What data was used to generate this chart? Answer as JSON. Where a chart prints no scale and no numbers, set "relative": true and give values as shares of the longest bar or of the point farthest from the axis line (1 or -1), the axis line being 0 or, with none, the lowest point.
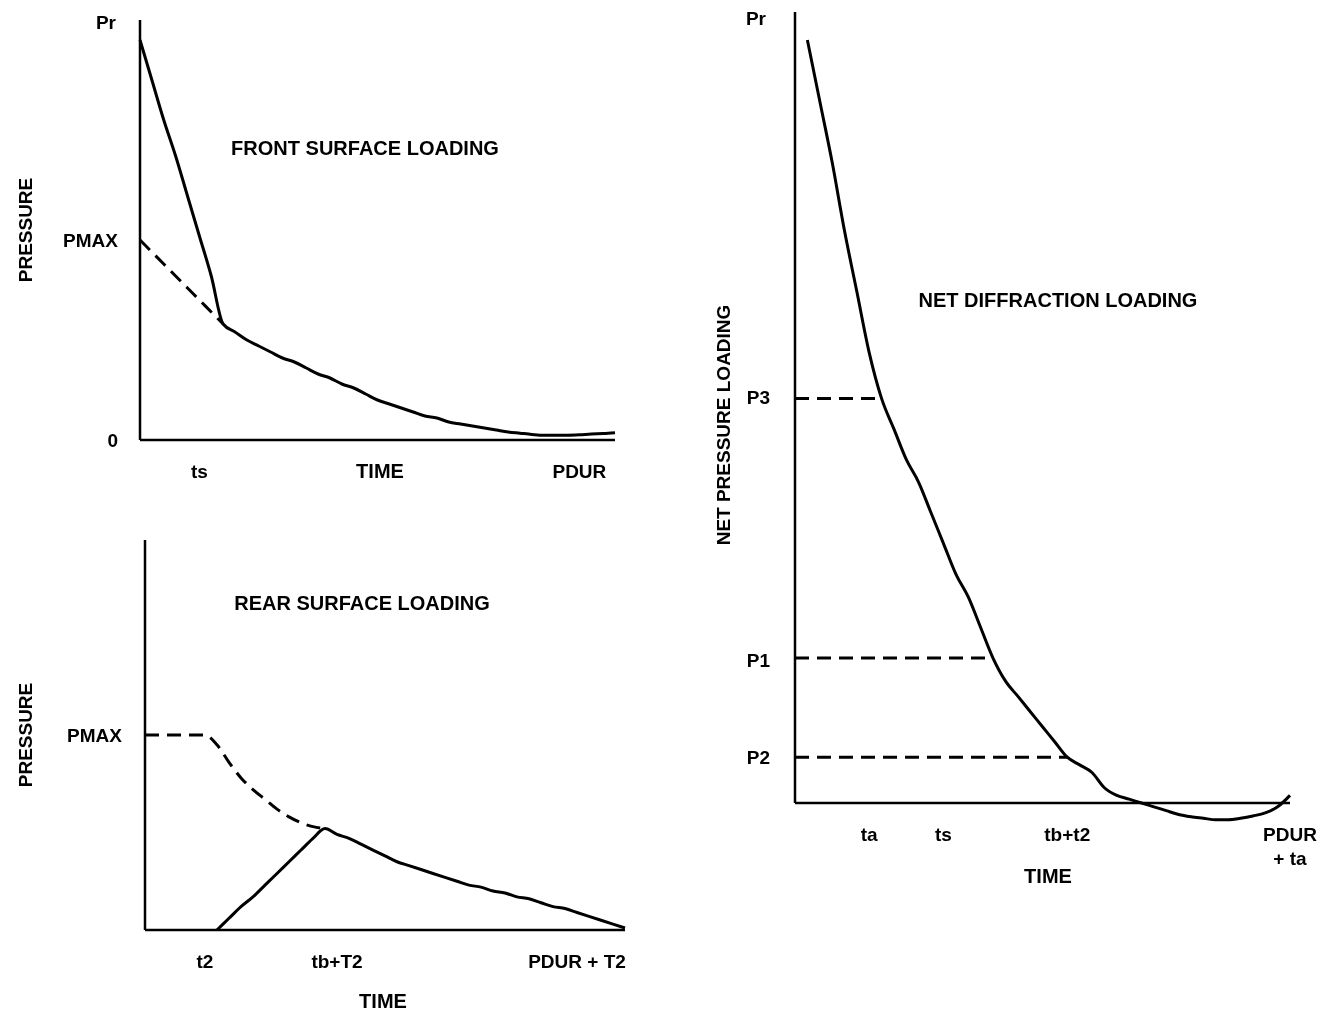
{
  "chart_data": [
    {
      "type": "line",
      "relative": true,
      "title": "FRONT SURFACE LOADING",
      "xlabel": "TIME",
      "ylabel": "PRESSURE",
      "categories": [
        null,
        null,
        null,
        null,
        null,
        "ts",
        null,
        null,
        null,
        null,
        null,
        null,
        null,
        null,
        null,
        null,
        null,
        null,
        null,
        null,
        null,
        null,
        null,
        null,
        null,
        null,
        null,
        null,
        null,
        null,
        null,
        null,
        null,
        null,
        null,
        null,
        null,
        "PDUR",
        null,
        null,
        null
      ],
      "annotations": [
        "Pr",
        "PMAX",
        "0"
      ],
      "series": [
        {
          "color": "#000000",
          "line_style": "solid",
          "values": [
            1,
            0.9,
            0.8,
            0.71,
            0.61,
            0.51,
            0.41,
            0.29,
            0.27,
            0.25,
            0.235,
            0.22,
            0.205,
            0.195,
            0.18,
            0.165,
            0.155,
            0.14,
            0.13,
            0.115,
            0.1,
            0.09,
            0.08,
            0.07,
            0.06,
            0.055,
            0.045,
            0.04,
            0.035,
            0.03,
            0.025,
            0.02,
            0.017,
            0.014,
            0.012,
            0.012,
            0.012,
            0.013,
            0.015,
            0.016,
            0.018
          ]
        },
        {
          "color": "#000000",
          "line_style": "dashed",
          "values": [
            0.5,
            0.47,
            0.44,
            0.41,
            0.38,
            0.35,
            0.32,
            0.29,
            null,
            null,
            null,
            null,
            null,
            null,
            null,
            null,
            null,
            null,
            null,
            null,
            null,
            null,
            null,
            null,
            null,
            null,
            null,
            null,
            null,
            null,
            null,
            null,
            null,
            null,
            null,
            null,
            null,
            null,
            null,
            null,
            null
          ]
        }
      ]
    },
    {
      "type": "line",
      "relative": true,
      "title": "REAR SURFACE LOADING",
      "xlabel": "TIME",
      "ylabel": "PRESSURE",
      "categories": [
        null,
        null,
        null,
        null,
        null,
        "t2",
        null,
        null,
        null,
        null,
        null,
        null,
        null,
        null,
        null,
        null,
        "tb+T2",
        null,
        null,
        null,
        null,
        null,
        null,
        null,
        null,
        null,
        null,
        null,
        null,
        null,
        null,
        null,
        null,
        null,
        null,
        null,
        "PDUR  + T2",
        null,
        null,
        null,
        null
      ],
      "annotations": [
        "PMAX"
      ],
      "series": [
        {
          "color": "#000000",
          "line_style": "solid",
          "values": [
            null,
            null,
            null,
            null,
            null,
            null,
            0,
            0.06,
            0.12,
            0.17,
            0.23,
            0.29,
            0.35,
            0.41,
            0.47,
            0.52,
            0.49,
            0.47,
            0.44,
            0.41,
            0.38,
            0.35,
            0.33,
            0.31,
            0.29,
            0.27,
            0.25,
            0.23,
            0.22,
            0.2,
            0.19,
            0.17,
            0.16,
            0.14,
            0.12,
            0.11,
            0.09,
            0.07,
            0.05,
            0.03,
            0.01
          ]
        },
        {
          "color": "#000000",
          "line_style": "dashed",
          "values": [
            1,
            1,
            1,
            1,
            1,
            1,
            0.95,
            0.86,
            0.78,
            0.72,
            0.67,
            0.62,
            0.58,
            0.55,
            0.53,
            0.52,
            null,
            null,
            null,
            null,
            null,
            null,
            null,
            null,
            null,
            null,
            null,
            null,
            null,
            null,
            null,
            null,
            null,
            null,
            null,
            null,
            null,
            null,
            null,
            null,
            null
          ]
        }
      ]
    },
    {
      "type": "line",
      "relative": true,
      "title": "NET DIFFRACTION LOADING",
      "xlabel": "TIME",
      "ylabel": "NET  PRESSURE LOADING",
      "categories": [
        null,
        null,
        null,
        null,
        null,
        null,
        "ta",
        null,
        null,
        null,
        null,
        null,
        "ts",
        null,
        null,
        null,
        null,
        null,
        null,
        null,
        null,
        null,
        "tb+t2",
        null,
        null,
        null,
        null,
        null,
        null,
        null,
        null,
        null,
        null,
        null,
        null,
        null,
        null,
        null,
        null,
        null,
        "PDUR\n+ ta"
      ],
      "annotations": [
        "Pr",
        "P3",
        "P1",
        "P2"
      ],
      "series": [
        {
          "color": "#000000",
          "line_style": "solid",
          "values": [
            null,
            1,
            0.92,
            0.84,
            0.75,
            0.67,
            0.59,
            0.53,
            0.49,
            0.45,
            0.42,
            0.38,
            0.34,
            0.3,
            0.27,
            0.23,
            0.19,
            0.16,
            0.14,
            0.12,
            0.1,
            0.08,
            0.06,
            0.05,
            0.04,
            0.02,
            0.01,
            0.005,
            0,
            -0.005,
            -0.01,
            -0.015,
            -0.018,
            -0.02,
            -0.022,
            -0.022,
            -0.02,
            -0.017,
            -0.013,
            -0.005,
            0.01
          ]
        },
        {
          "color": "#000000",
          "line_style": "dashed",
          "values": [
            0.53,
            0.53,
            0.53,
            0.53,
            0.53,
            0.53,
            0.53,
            0.53,
            null,
            null,
            null,
            null,
            null,
            null,
            null,
            null,
            null,
            null,
            null,
            null,
            null,
            null,
            null,
            null,
            null,
            null,
            null,
            null,
            null,
            null,
            null,
            null,
            null,
            null,
            null,
            null,
            null,
            null,
            null,
            null,
            null
          ]
        },
        {
          "color": "#000000",
          "line_style": "dashed",
          "values": [
            0.19,
            0.19,
            0.19,
            0.19,
            0.19,
            0.19,
            0.19,
            0.19,
            0.19,
            0.19,
            0.19,
            0.19,
            0.19,
            0.19,
            0.19,
            0.19,
            0.19,
            null,
            null,
            null,
            null,
            null,
            null,
            null,
            null,
            null,
            null,
            null,
            null,
            null,
            null,
            null,
            null,
            null,
            null,
            null,
            null,
            null,
            null,
            null,
            null
          ]
        },
        {
          "color": "#000000",
          "line_style": "dashed",
          "values": [
            0.06,
            0.06,
            0.06,
            0.06,
            0.06,
            0.06,
            0.06,
            0.06,
            0.06,
            0.06,
            0.06,
            0.06,
            0.06,
            0.06,
            0.06,
            0.06,
            0.06,
            0.06,
            0.06,
            0.06,
            0.06,
            0.06,
            0.06,
            null,
            null,
            null,
            null,
            null,
            null,
            null,
            null,
            null,
            null,
            null,
            null,
            null,
            null,
            null,
            null,
            null,
            null
          ]
        }
      ]
    }
  ]
}
